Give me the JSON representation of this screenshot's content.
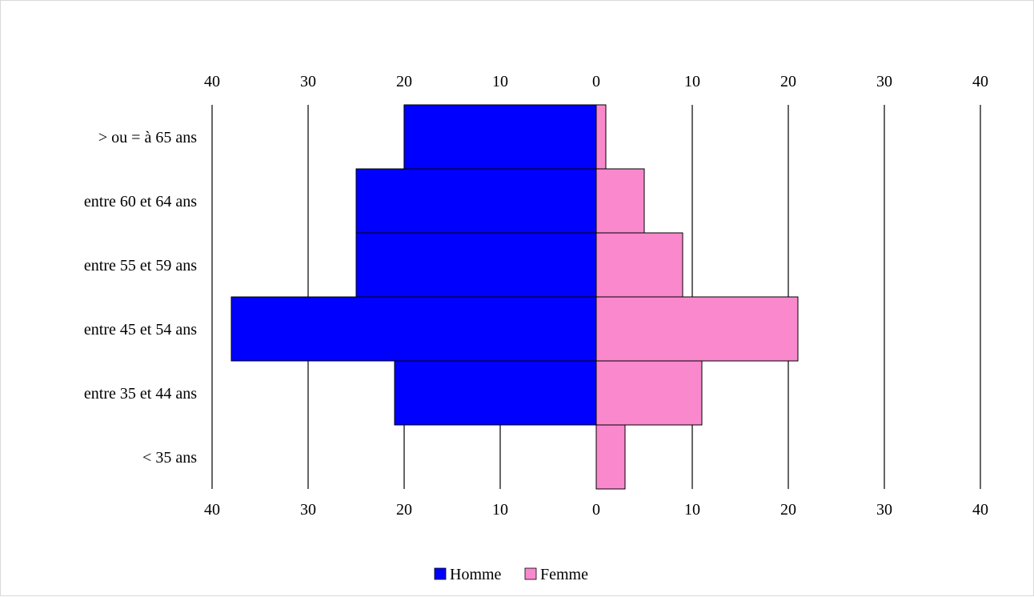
{
  "chart_data": {
    "type": "bar",
    "orientation": "horizontal",
    "layout": "population-pyramid",
    "categories": [
      "> ou = à 65 ans",
      "entre 60 et 64 ans",
      "entre 55 et 59 ans",
      "entre 45 et 54 ans",
      "entre 35 et 44 ans",
      "< 35 ans"
    ],
    "series": [
      {
        "name": "Homme",
        "side": "left",
        "color": "#0000ff",
        "values": [
          20,
          25,
          25,
          38,
          21,
          0
        ]
      },
      {
        "name": "Femme",
        "side": "right",
        "color": "#f988cd",
        "values": [
          1,
          5,
          9,
          21,
          11,
          3
        ]
      }
    ],
    "xlim": [
      -40,
      40
    ],
    "ticks": [
      -40,
      -30,
      -20,
      -10,
      0,
      10,
      20,
      30,
      40
    ],
    "tick_labels": [
      "40",
      "30",
      "20",
      "10",
      "0",
      "10",
      "20",
      "30",
      "40"
    ],
    "tick_labels_top": true,
    "tick_labels_bottom": true,
    "grid": "vertical",
    "legend": "bottom-center",
    "title": "",
    "xlabel": "",
    "ylabel": ""
  }
}
